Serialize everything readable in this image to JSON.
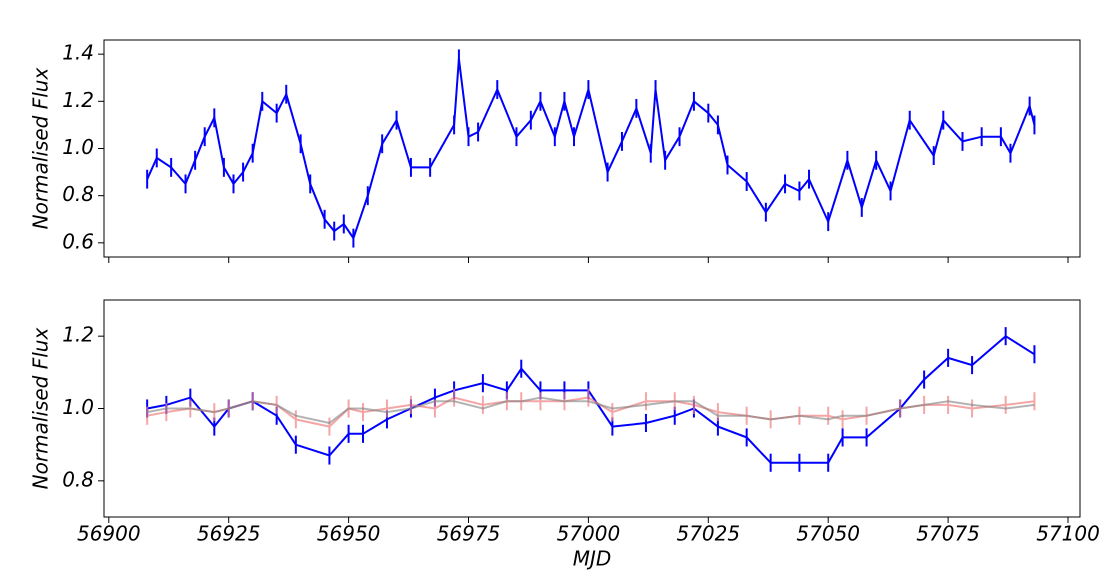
{
  "chart_data": [
    {
      "type": "errorbar",
      "ylabel": "Normalised Flux",
      "xlim": [
        56899,
        57102.5
      ],
      "ylim": [
        0.54,
        1.46
      ],
      "xticks": [
        56900,
        56925,
        56950,
        56975,
        57000,
        57025,
        57050,
        57075,
        57100
      ],
      "show_xtick_labels": false,
      "yticks": [
        0.6,
        0.8,
        {
          "value": 1,
          "label": "1.0"
        },
        1.2,
        1.4
      ],
      "x": [
        56908,
        56910,
        56913,
        56916,
        56918,
        56920,
        56922,
        56924,
        56926,
        56928,
        56930,
        56932,
        56935,
        56937,
        56940,
        56942,
        56945,
        56947,
        56949,
        56951,
        56954,
        56957,
        56960,
        56963,
        56967,
        56972,
        56973,
        56975,
        56977,
        56981,
        56985,
        56988,
        56990,
        56993,
        56995,
        56997,
        57000,
        57004,
        57007,
        57010,
        57013,
        57014,
        57016,
        57019,
        57022,
        57025,
        57027,
        57029,
        57033,
        57037,
        57041,
        57044,
        57046,
        57050,
        57054,
        57057,
        57060,
        57063,
        57067,
        57072,
        57074,
        57078,
        57082,
        57086,
        57088,
        57092,
        57093
      ],
      "series": [
        {
          "color": "#0000ff",
          "opacity": 1,
          "error": 0.04,
          "values": [
            0.87,
            0.96,
            0.92,
            0.85,
            0.95,
            1.05,
            1.13,
            0.92,
            0.85,
            0.9,
            0.98,
            1.2,
            1.15,
            1.23,
            1.02,
            0.85,
            0.7,
            0.65,
            0.68,
            0.62,
            0.8,
            1.02,
            1.12,
            0.92,
            0.92,
            1.1,
            1.38,
            1.05,
            1.07,
            1.25,
            1.05,
            1.12,
            1.2,
            1.05,
            1.2,
            1.05,
            1.25,
            0.9,
            1.03,
            1.17,
            0.98,
            1.25,
            0.95,
            1.05,
            1.2,
            1.15,
            1.1,
            0.93,
            0.86,
            0.73,
            0.85,
            0.82,
            0.87,
            0.69,
            0.95,
            0.75,
            0.95,
            0.82,
            1.12,
            0.97,
            1.12,
            1.03,
            1.05,
            1.05,
            0.98,
            1.18,
            1.1
          ]
        }
      ]
    },
    {
      "type": "errorbar",
      "ylabel": "Normalised Flux",
      "xlabel": "MJD",
      "xlim": [
        56899,
        57102.5
      ],
      "ylim": [
        0.7,
        1.3
      ],
      "xticks": [
        56900,
        56925,
        56950,
        56975,
        57000,
        57025,
        57050,
        57075,
        57100
      ],
      "show_xtick_labels": true,
      "yticks": [
        0.8,
        {
          "value": 1,
          "label": "1.0"
        },
        1.2
      ],
      "x": [
        56908,
        56912,
        56917,
        56922,
        56925,
        56930,
        56935,
        56939,
        56946,
        56950,
        56953,
        56958,
        56963,
        56968,
        56972,
        56978,
        56983,
        56986,
        56990,
        56995,
        57000,
        57005,
        57012,
        57018,
        57022,
        57027,
        57033,
        57038,
        57044,
        57050,
        57053,
        57058,
        57065,
        57070,
        57075,
        57080,
        57087,
        57093
      ],
      "series": [
        {
          "color": "#0000ff",
          "opacity": 1,
          "error": 0.025,
          "values": [
            1.0,
            1.01,
            1.03,
            0.95,
            1.0,
            1.02,
            0.98,
            0.9,
            0.87,
            0.93,
            0.93,
            0.97,
            1.0,
            1.03,
            1.05,
            1.07,
            1.05,
            1.11,
            1.05,
            1.05,
            1.05,
            0.95,
            0.96,
            0.98,
            1.0,
            0.95,
            0.92,
            0.85,
            0.85,
            0.85,
            0.92,
            0.92,
            1.0,
            1.08,
            1.14,
            1.12,
            1.2,
            1.15
          ]
        },
        {
          "color": "#f08080",
          "opacity": 0.7,
          "error": 0.025,
          "values": [
            0.98,
            0.99,
            1.0,
            0.99,
            1.0,
            1.02,
            1.01,
            0.97,
            0.95,
            1.0,
            0.99,
            1.0,
            1.01,
            1.0,
            1.03,
            1.01,
            1.02,
            1.02,
            1.02,
            1.02,
            1.03,
            0.99,
            1.02,
            1.02,
            1.01,
            0.99,
            0.98,
            0.97,
            0.98,
            0.98,
            0.97,
            0.98,
            1.0,
            1.01,
            1.01,
            1.0,
            1.01,
            1.02
          ]
        },
        {
          "color": "#808080",
          "opacity": 0.6,
          "values": [
            0.99,
            1.0,
            1.0,
            0.99,
            1.0,
            1.02,
            1.01,
            0.98,
            0.96,
            1.0,
            1.0,
            0.99,
            1.0,
            1.02,
            1.02,
            1.0,
            1.02,
            1.02,
            1.03,
            1.02,
            1.02,
            1.0,
            1.01,
            1.02,
            1.02,
            0.98,
            0.98,
            0.97,
            0.98,
            0.97,
            0.98,
            0.98,
            1.0,
            1.01,
            1.02,
            1.01,
            1.0,
            1.01
          ]
        }
      ]
    }
  ]
}
